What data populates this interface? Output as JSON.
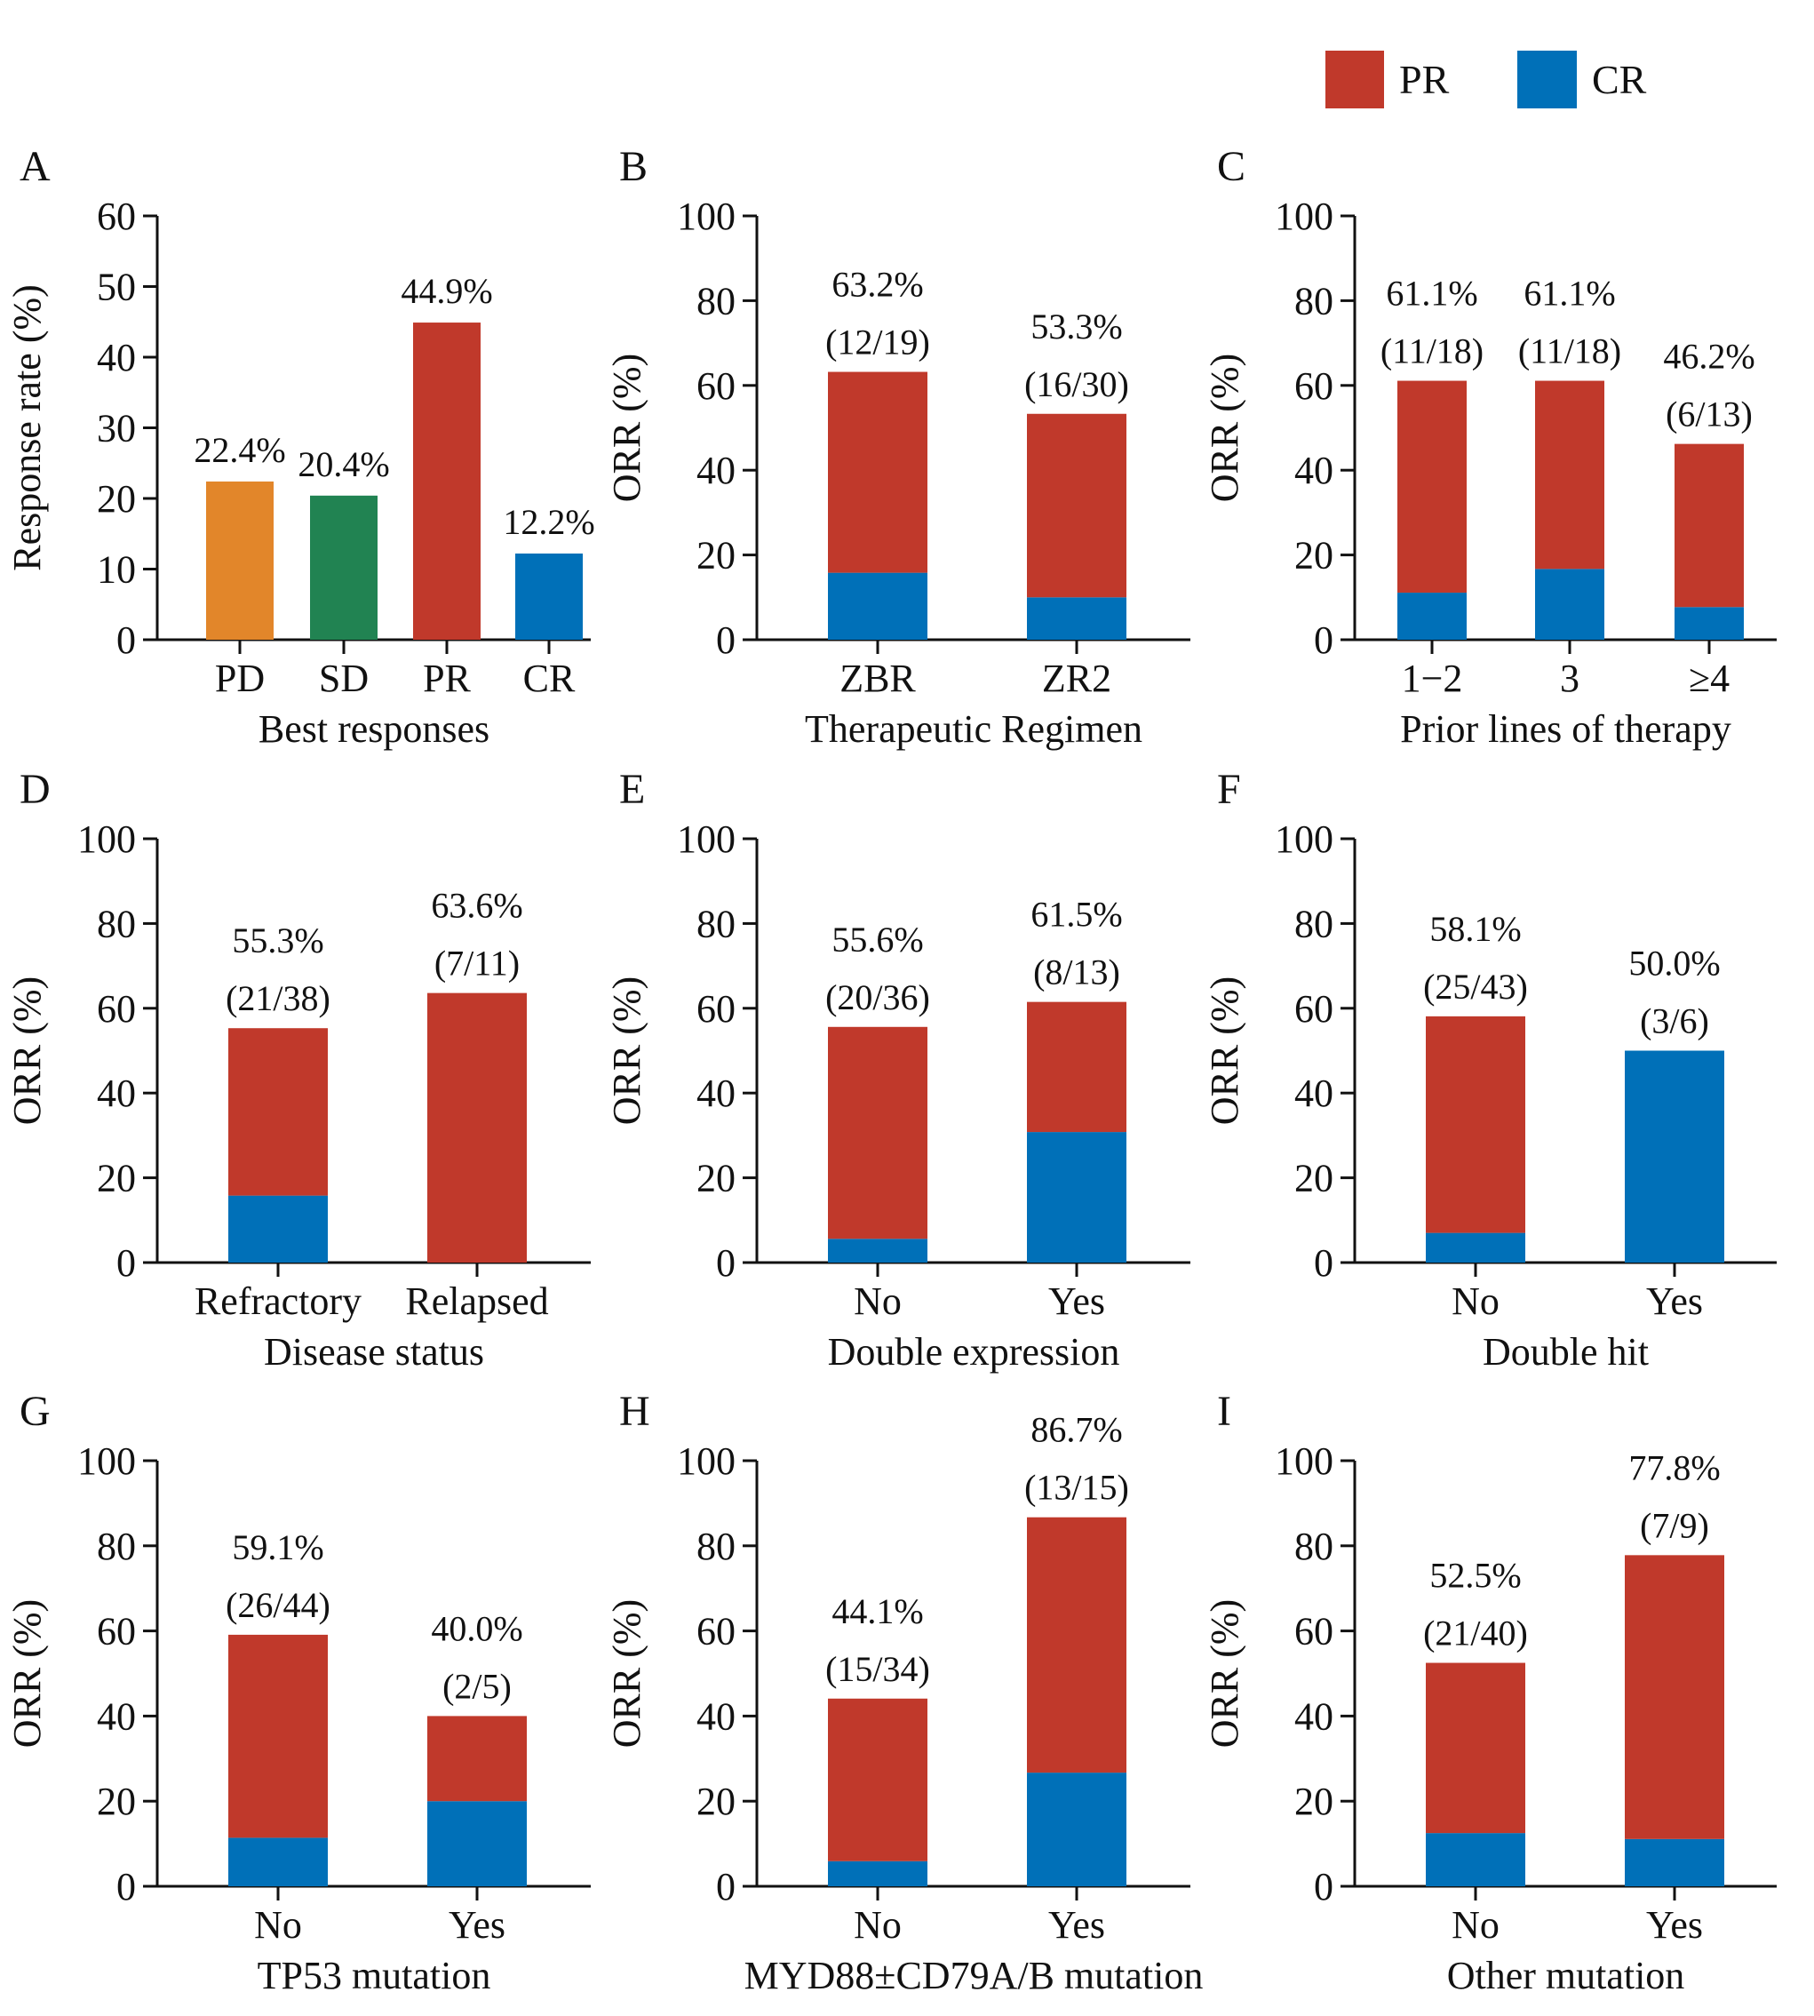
{
  "legend": [
    {
      "label": "PR",
      "color": "#c0392b"
    },
    {
      "label": "CR",
      "color": "#0070b8"
    }
  ],
  "colors": {
    "PR": "#c0392b",
    "CR": "#0070b8",
    "PD": "#e2862a",
    "SD": "#218352"
  },
  "chart_data": [
    {
      "panel": "A",
      "type": "bar",
      "categories": [
        "PD",
        "SD",
        "PR",
        "CR"
      ],
      "values": [
        22.4,
        20.4,
        44.9,
        12.2
      ],
      "bar_colors": [
        "#e2862a",
        "#218352",
        "#c0392b",
        "#0070b8"
      ],
      "labels": [
        "22.4%",
        "20.4%",
        "44.9%",
        "12.2%"
      ],
      "xlabel": "Best responses",
      "ylabel": "Response rate (%)",
      "ylim": [
        0,
        60
      ],
      "yticks": [
        0,
        10,
        20,
        30,
        40,
        50,
        60
      ]
    },
    {
      "panel": "B",
      "type": "bar",
      "stacked": true,
      "categories": [
        "ZBR",
        "ZR2"
      ],
      "series": [
        {
          "name": "CR",
          "values": [
            15.8,
            10.0
          ]
        },
        {
          "name": "PR",
          "values": [
            47.4,
            43.3
          ]
        }
      ],
      "labels": [
        [
          "63.2%",
          "(12/19)"
        ],
        [
          "53.3%",
          "(16/30)"
        ]
      ],
      "xlabel": "Therapeutic Regimen",
      "ylabel": "ORR (%)",
      "ylim": [
        0,
        100
      ],
      "yticks": [
        0,
        20,
        40,
        60,
        80,
        100
      ]
    },
    {
      "panel": "C",
      "type": "bar",
      "stacked": true,
      "categories": [
        "1−2",
        "3",
        "≥4"
      ],
      "series": [
        {
          "name": "CR",
          "values": [
            11.1,
            16.7,
            7.7
          ]
        },
        {
          "name": "PR",
          "values": [
            50.0,
            44.4,
            38.5
          ]
        }
      ],
      "labels": [
        [
          "61.1%",
          "(11/18)"
        ],
        [
          "61.1%",
          "(11/18)"
        ],
        [
          "46.2%",
          "(6/13)"
        ]
      ],
      "xlabel": "Prior lines of therapy",
      "ylabel": "ORR (%)",
      "ylim": [
        0,
        100
      ],
      "yticks": [
        0,
        20,
        40,
        60,
        80,
        100
      ]
    },
    {
      "panel": "D",
      "type": "bar",
      "stacked": true,
      "categories": [
        "Refractory",
        "Relapsed"
      ],
      "series": [
        {
          "name": "CR",
          "values": [
            15.8,
            0
          ]
        },
        {
          "name": "PR",
          "values": [
            39.5,
            63.6
          ]
        }
      ],
      "labels": [
        [
          "55.3%",
          "(21/38)"
        ],
        [
          "63.6%",
          "(7/11)"
        ]
      ],
      "xlabel": "Disease status",
      "ylabel": "ORR (%)",
      "ylim": [
        0,
        100
      ],
      "yticks": [
        0,
        20,
        40,
        60,
        80,
        100
      ]
    },
    {
      "panel": "E",
      "type": "bar",
      "stacked": true,
      "categories": [
        "No",
        "Yes"
      ],
      "series": [
        {
          "name": "CR",
          "values": [
            5.6,
            30.8
          ]
        },
        {
          "name": "PR",
          "values": [
            50.0,
            30.7
          ]
        }
      ],
      "labels": [
        [
          "55.6%",
          "(20/36)"
        ],
        [
          "61.5%",
          "(8/13)"
        ]
      ],
      "xlabel": "Double expression",
      "ylabel": "ORR (%)",
      "ylim": [
        0,
        100
      ],
      "yticks": [
        0,
        20,
        40,
        60,
        80,
        100
      ]
    },
    {
      "panel": "F",
      "type": "bar",
      "stacked": true,
      "categories": [
        "No",
        "Yes"
      ],
      "series": [
        {
          "name": "CR",
          "values": [
            7.0,
            50.0
          ]
        },
        {
          "name": "PR",
          "values": [
            51.1,
            0
          ]
        }
      ],
      "labels": [
        [
          "58.1%",
          "(25/43)"
        ],
        [
          "50.0%",
          "(3/6)"
        ]
      ],
      "xlabel": "Double hit",
      "ylabel": "ORR (%)",
      "ylim": [
        0,
        100
      ],
      "yticks": [
        0,
        20,
        40,
        60,
        80,
        100
      ]
    },
    {
      "panel": "G",
      "type": "bar",
      "stacked": true,
      "categories": [
        "No",
        "Yes"
      ],
      "series": [
        {
          "name": "CR",
          "values": [
            11.4,
            20.0
          ]
        },
        {
          "name": "PR",
          "values": [
            47.7,
            20.0
          ]
        }
      ],
      "labels": [
        [
          "59.1%",
          "(26/44)"
        ],
        [
          "40.0%",
          "(2/5)"
        ]
      ],
      "xlabel": "TP53 mutation",
      "ylabel": "ORR (%)",
      "ylim": [
        0,
        100
      ],
      "yticks": [
        0,
        20,
        40,
        60,
        80,
        100
      ]
    },
    {
      "panel": "H",
      "type": "bar",
      "stacked": true,
      "categories": [
        "No",
        "Yes"
      ],
      "series": [
        {
          "name": "CR",
          "values": [
            5.9,
            26.7
          ]
        },
        {
          "name": "PR",
          "values": [
            38.2,
            60.0
          ]
        }
      ],
      "labels": [
        [
          "44.1%",
          "(15/34)"
        ],
        [
          "86.7%",
          "(13/15)"
        ]
      ],
      "xlabel": "MYD88±CD79A/B mutation",
      "ylabel": "ORR (%)",
      "ylim": [
        0,
        100
      ],
      "yticks": [
        0,
        20,
        40,
        60,
        80,
        100
      ]
    },
    {
      "panel": "I",
      "type": "bar",
      "stacked": true,
      "categories": [
        "No",
        "Yes"
      ],
      "series": [
        {
          "name": "CR",
          "values": [
            12.5,
            11.1
          ]
        },
        {
          "name": "PR",
          "values": [
            40.0,
            66.7
          ]
        }
      ],
      "labels": [
        [
          "52.5%",
          "(21/40)"
        ],
        [
          "77.8%",
          "(7/9)"
        ]
      ],
      "xlabel": "Other mutation",
      "ylabel": "ORR (%)",
      "ylim": [
        0,
        100
      ],
      "yticks": [
        0,
        20,
        40,
        60,
        80,
        100
      ]
    }
  ]
}
